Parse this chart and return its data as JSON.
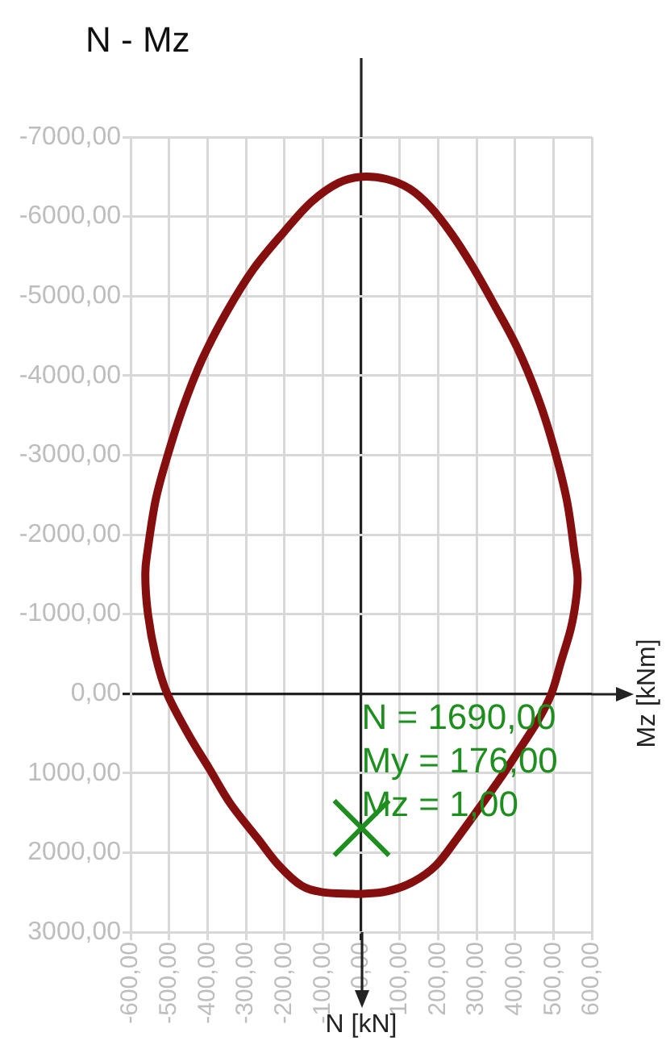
{
  "chart_data": {
    "type": "scatter",
    "title": "N - Mz",
    "series": [
      {
        "color": "#1e8f1e",
        "marker": "cross",
        "x": [
          1
        ],
        "values": [
          1690
        ]
      }
    ],
    "xlim": [
      -600,
      600
    ],
    "xticks": [
      {
        "value": -600,
        "label": "-600,00"
      },
      {
        "value": -500,
        "label": "-500,00"
      },
      {
        "value": -400,
        "label": "-400,00"
      },
      {
        "value": -300,
        "label": "-300,00"
      },
      {
        "value": -200,
        "label": "-200,00"
      },
      {
        "value": -100,
        "label": "-100,00"
      },
      {
        "value": 0,
        "label": "0,00"
      },
      {
        "value": 100,
        "label": "100,00"
      },
      {
        "value": 200,
        "label": "200,00"
      },
      {
        "value": 300,
        "label": "300,00"
      },
      {
        "value": 400,
        "label": "400,00"
      },
      {
        "value": 500,
        "label": "500,00"
      },
      {
        "value": 600,
        "label": "600,00"
      }
    ],
    "ylim": [
      3000,
      -7000
    ],
    "yticks": [
      {
        "value": -7000,
        "label": "-7000,00"
      },
      {
        "value": -6000,
        "label": "-6000,00"
      },
      {
        "value": -5000,
        "label": "-5000,00"
      },
      {
        "value": -4000,
        "label": "-4000,00"
      },
      {
        "value": -3000,
        "label": "-3000,00"
      },
      {
        "value": -2000,
        "label": "-2000,00"
      },
      {
        "value": -1000,
        "label": "-1000,00"
      },
      {
        "value": 0,
        "label": "0,00"
      },
      {
        "value": 1000,
        "label": "1000,00"
      },
      {
        "value": 2000,
        "label": "2000,00"
      },
      {
        "value": 3000,
        "label": "3000,00"
      }
    ],
    "annotations": [
      "N = 1690,00",
      "My = 176,00",
      "Mz = 1,00",
      "Mz [kNm]",
      "N [kN]"
    ],
    "grid": true
  }
}
